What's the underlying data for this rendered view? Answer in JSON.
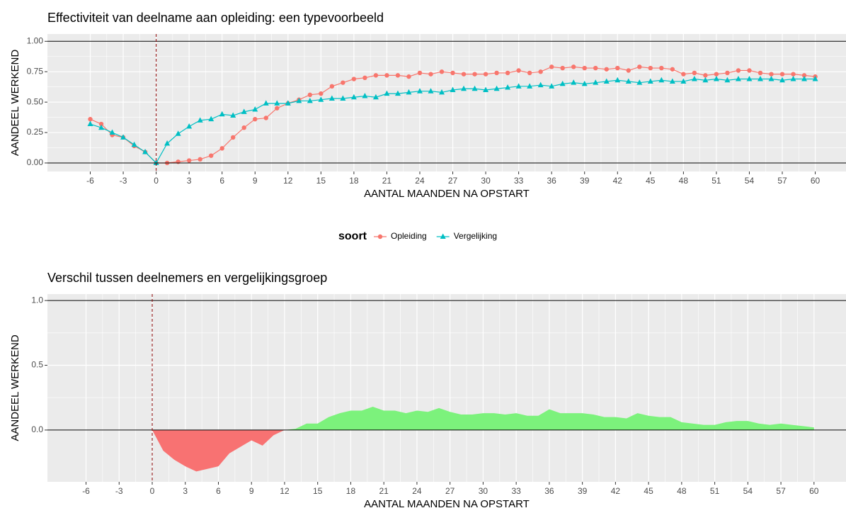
{
  "chart_data": [
    {
      "type": "line",
      "title": "Effectiviteit van deelname aan opleiding: een typevoorbeeld",
      "xlabel": "AANTAL MAANDEN NA OPSTART",
      "ylabel": "AANDEEL WERKEND",
      "x": [
        -6,
        -5,
        -4,
        -3,
        -2,
        -1,
        0,
        1,
        2,
        3,
        4,
        5,
        6,
        7,
        8,
        9,
        10,
        11,
        12,
        13,
        14,
        15,
        16,
        17,
        18,
        19,
        20,
        21,
        22,
        23,
        24,
        25,
        26,
        27,
        28,
        29,
        30,
        31,
        32,
        33,
        34,
        35,
        36,
        37,
        38,
        39,
        40,
        41,
        42,
        43,
        44,
        45,
        46,
        47,
        48,
        49,
        50,
        51,
        52,
        53,
        54,
        55,
        56,
        57,
        58,
        59,
        60
      ],
      "series": [
        {
          "name": "Opleiding",
          "color": "#F8766D",
          "marker": "circle",
          "values": [
            0.36,
            0.32,
            0.23,
            0.21,
            0.14,
            0.09,
            0.0,
            0.0,
            0.01,
            0.02,
            0.03,
            0.06,
            0.12,
            0.21,
            0.29,
            0.36,
            0.37,
            0.45,
            0.49,
            0.52,
            0.56,
            0.57,
            0.63,
            0.66,
            0.69,
            0.7,
            0.72,
            0.72,
            0.72,
            0.71,
            0.74,
            0.73,
            0.75,
            0.74,
            0.73,
            0.73,
            0.73,
            0.74,
            0.74,
            0.76,
            0.74,
            0.75,
            0.79,
            0.78,
            0.79,
            0.78,
            0.78,
            0.77,
            0.78,
            0.76,
            0.79,
            0.78,
            0.78,
            0.77,
            0.73,
            0.74,
            0.72,
            0.73,
            0.74,
            0.76,
            0.76,
            0.74,
            0.73,
            0.73,
            0.73,
            0.72,
            0.71
          ]
        },
        {
          "name": "Vergelijking",
          "color": "#00BFC4",
          "marker": "triangle",
          "values": [
            0.32,
            0.29,
            0.25,
            0.21,
            0.15,
            0.09,
            0.0,
            0.16,
            0.24,
            0.3,
            0.35,
            0.36,
            0.4,
            0.39,
            0.42,
            0.44,
            0.49,
            0.49,
            0.49,
            0.51,
            0.51,
            0.52,
            0.53,
            0.53,
            0.54,
            0.55,
            0.54,
            0.57,
            0.57,
            0.58,
            0.59,
            0.59,
            0.58,
            0.6,
            0.61,
            0.61,
            0.6,
            0.61,
            0.62,
            0.63,
            0.63,
            0.64,
            0.63,
            0.65,
            0.66,
            0.65,
            0.66,
            0.67,
            0.68,
            0.67,
            0.66,
            0.67,
            0.68,
            0.67,
            0.67,
            0.69,
            0.68,
            0.69,
            0.68,
            0.69,
            0.69,
            0.69,
            0.69,
            0.68,
            0.69,
            0.69,
            0.69
          ]
        }
      ],
      "xlim": [
        -9.9,
        62.8
      ],
      "xticks": [
        -6,
        -3,
        0,
        3,
        6,
        9,
        12,
        15,
        18,
        21,
        24,
        27,
        30,
        33,
        36,
        39,
        42,
        45,
        48,
        51,
        54,
        57,
        60
      ],
      "ylim": [
        -0.07,
        1.06
      ],
      "yticks": [
        {
          "value": 0,
          "label": "0.00"
        },
        {
          "value": 0.25,
          "label": "0.25"
        },
        {
          "value": 0.5,
          "label": "0.50"
        },
        {
          "value": 0.75,
          "label": "0.75"
        },
        {
          "value": 1,
          "label": "1.00"
        }
      ],
      "hlines": [
        0,
        1
      ],
      "vline": 0,
      "grid": true,
      "legend_title": "soort",
      "legend_position": "bottom"
    },
    {
      "type": "area",
      "title": "Verschil tussen deelnemers en vergelijkingsgroep",
      "xlabel": "AANTAL MAANDEN NA OPSTART",
      "ylabel": "AANDEEL WERKEND",
      "x": [
        0,
        1,
        2,
        3,
        4,
        5,
        6,
        7,
        8,
        9,
        10,
        11,
        12,
        13,
        14,
        15,
        16,
        17,
        18,
        19,
        20,
        21,
        22,
        23,
        24,
        25,
        26,
        27,
        28,
        29,
        30,
        31,
        32,
        33,
        34,
        35,
        36,
        37,
        38,
        39,
        40,
        41,
        42,
        43,
        44,
        45,
        46,
        47,
        48,
        49,
        50,
        51,
        52,
        53,
        54,
        55,
        56,
        57,
        58,
        59,
        60
      ],
      "values": [
        0,
        -0.16,
        -0.23,
        -0.28,
        -0.32,
        -0.3,
        -0.28,
        -0.18,
        -0.13,
        -0.08,
        -0.12,
        -0.04,
        0.0,
        0.01,
        0.05,
        0.05,
        0.1,
        0.13,
        0.15,
        0.15,
        0.18,
        0.15,
        0.15,
        0.13,
        0.15,
        0.14,
        0.17,
        0.14,
        0.12,
        0.12,
        0.13,
        0.13,
        0.12,
        0.13,
        0.11,
        0.11,
        0.16,
        0.13,
        0.13,
        0.13,
        0.12,
        0.1,
        0.1,
        0.09,
        0.13,
        0.11,
        0.1,
        0.1,
        0.06,
        0.05,
        0.04,
        0.04,
        0.06,
        0.07,
        0.07,
        0.05,
        0.04,
        0.05,
        0.04,
        0.03,
        0.02
      ],
      "positive_color": "#7CF27C",
      "negative_color": "#F87272",
      "xlim": [
        -9.5,
        62.9
      ],
      "xticks": [
        -6,
        -3,
        0,
        3,
        6,
        9,
        12,
        15,
        18,
        21,
        24,
        27,
        30,
        33,
        36,
        39,
        42,
        45,
        48,
        51,
        54,
        57,
        60
      ],
      "ylim": [
        -0.4,
        1.05
      ],
      "yticks": [
        {
          "value": 0,
          "label": "0.0"
        },
        {
          "value": 0.5,
          "label": "0.5"
        },
        {
          "value": 1,
          "label": "1.0"
        }
      ],
      "hlines": [
        0,
        1
      ],
      "vline": 0,
      "grid": true
    }
  ]
}
